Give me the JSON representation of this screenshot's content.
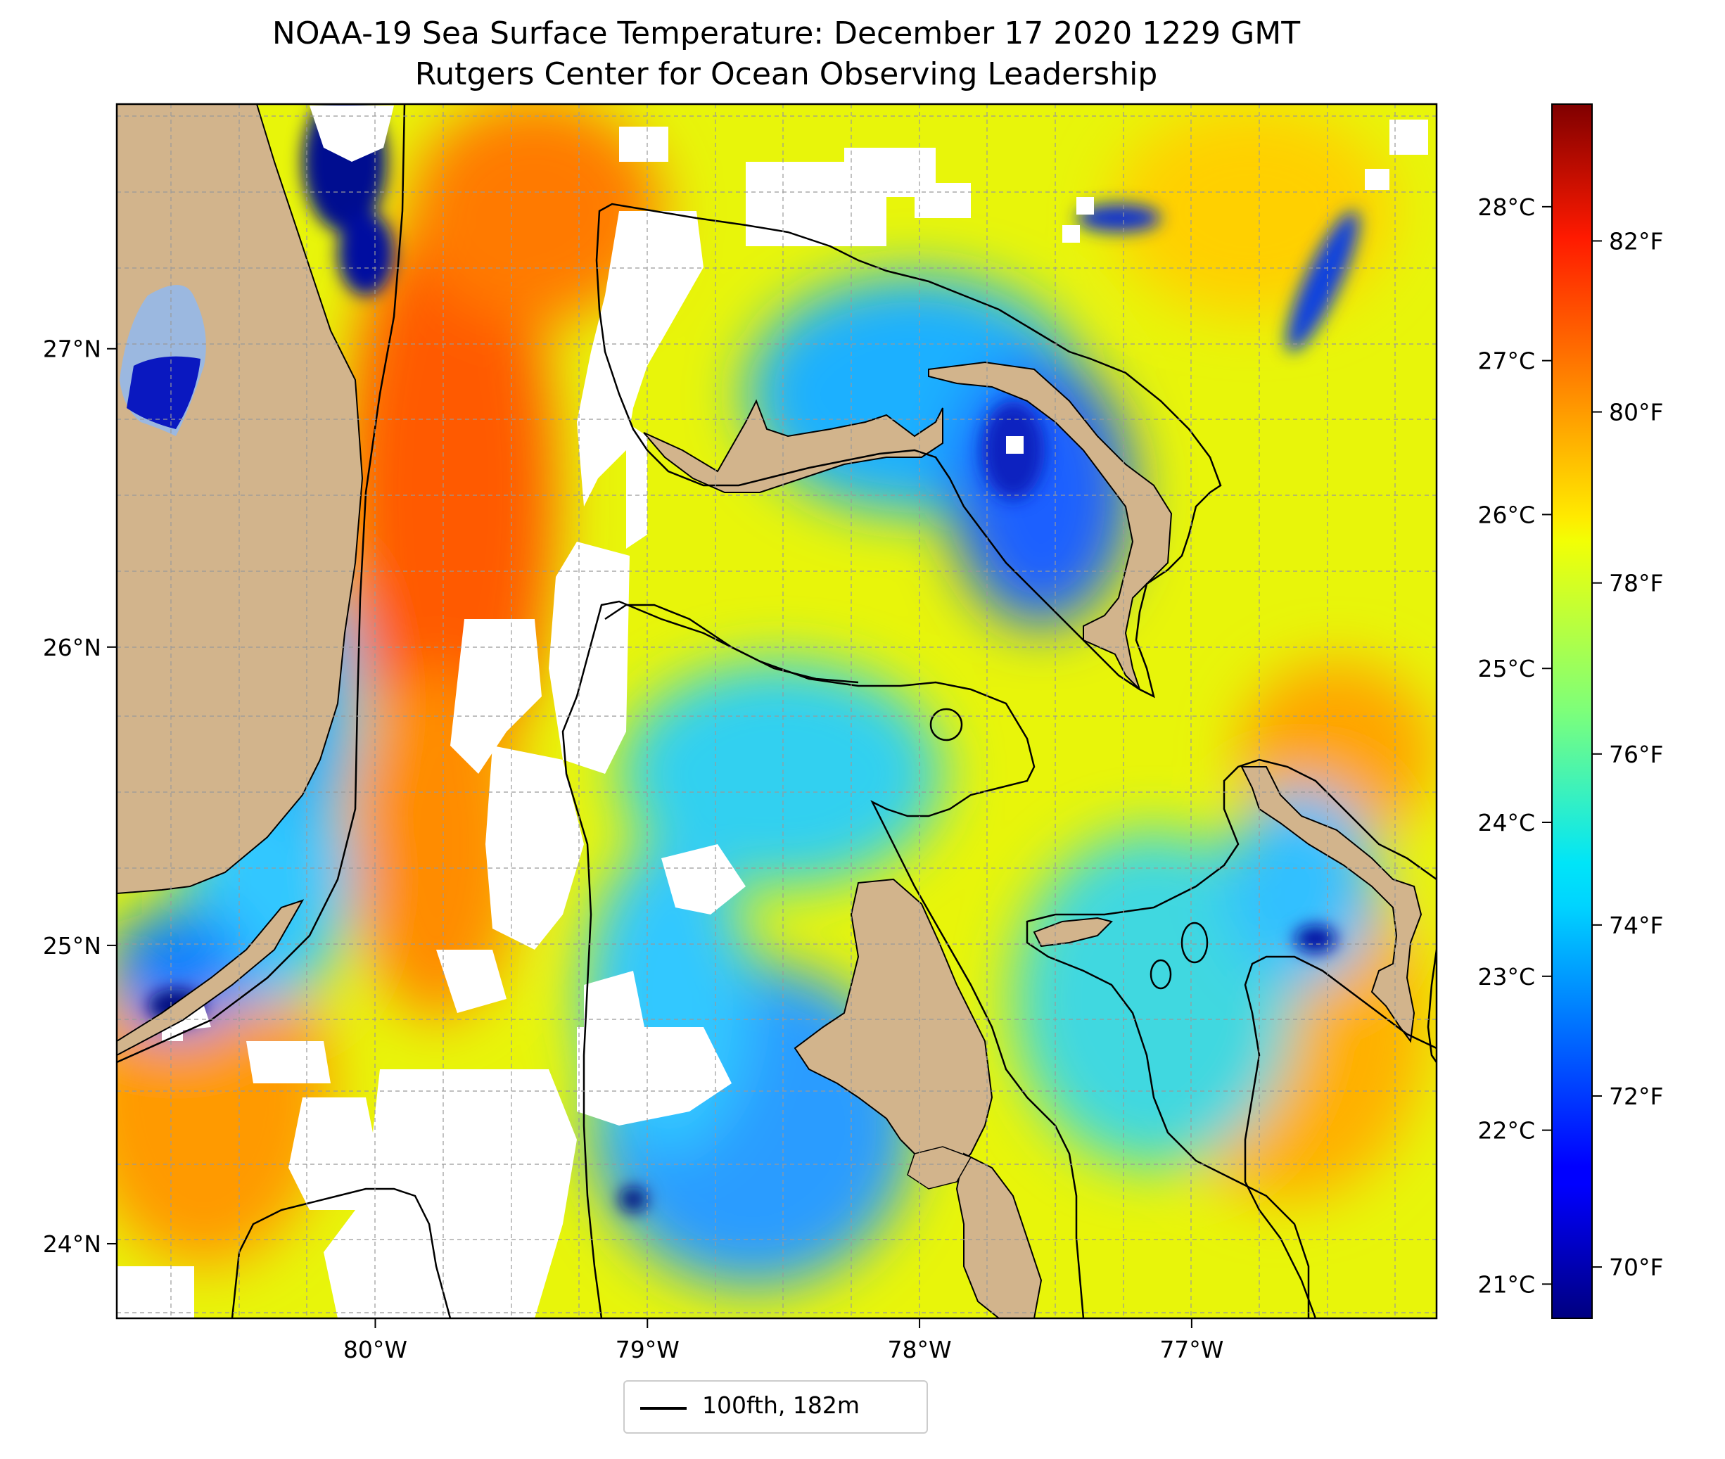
{
  "title": {
    "line1": "NOAA-19 Sea Surface Temperature: December 17 2020 1229 GMT",
    "line2": "Rutgers Center for Ocean Observing Leadership"
  },
  "map": {
    "lon_range": [
      -80.95,
      -76.1
    ],
    "lat_range": [
      23.75,
      27.82
    ],
    "lon_ticks": [
      {
        "value": -80,
        "label": "80°W"
      },
      {
        "value": -79,
        "label": "79°W"
      },
      {
        "value": -78,
        "label": "78°W"
      },
      {
        "value": -77,
        "label": "77°W"
      }
    ],
    "lat_ticks": [
      {
        "value": 24,
        "label": "24°N"
      },
      {
        "value": 25,
        "label": "25°N"
      },
      {
        "value": 26,
        "label": "26°N"
      },
      {
        "value": 27,
        "label": "27°N"
      }
    ],
    "gridlines": true,
    "land_color": "#d2b48c",
    "cloud_color": "#ffffff"
  },
  "colorbar": {
    "colormap": "jet",
    "range_f": [
      69.4,
      83.6
    ],
    "celsius_ticks": [
      {
        "value": 21,
        "label": "21°C"
      },
      {
        "value": 22,
        "label": "22°C"
      },
      {
        "value": 23,
        "label": "23°C"
      },
      {
        "value": 24,
        "label": "24°C"
      },
      {
        "value": 25,
        "label": "25°C"
      },
      {
        "value": 26,
        "label": "26°C"
      },
      {
        "value": 27,
        "label": "27°C"
      },
      {
        "value": 28,
        "label": "28°C"
      }
    ],
    "fahrenheit_ticks": [
      {
        "value": 70,
        "label": "70°F"
      },
      {
        "value": 72,
        "label": "72°F"
      },
      {
        "value": 74,
        "label": "74°F"
      },
      {
        "value": 76,
        "label": "76°F"
      },
      {
        "value": 78,
        "label": "78°F"
      },
      {
        "value": 80,
        "label": "80°F"
      },
      {
        "value": 82,
        "label": "82°F"
      }
    ]
  },
  "legend": {
    "label": "100fth, 182m",
    "line_color": "#000000"
  }
}
